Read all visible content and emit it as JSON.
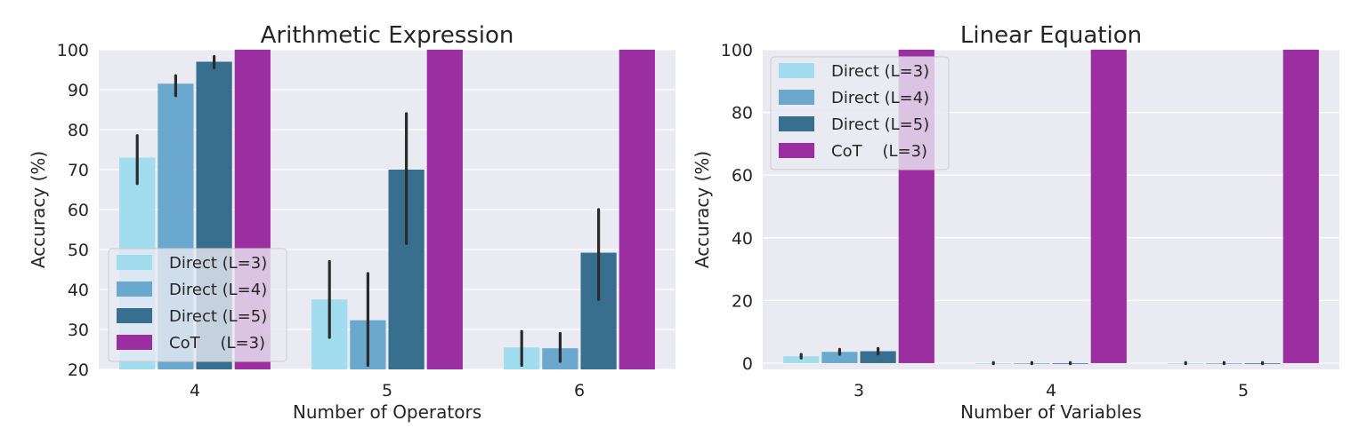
{
  "colors": {
    "background": "#eaeaf2",
    "grid": "#ffffff",
    "errorbar": "#2b2b2b",
    "series": [
      "#a1dcef",
      "#6aa8cd",
      "#386f8e",
      "#9b2ea0"
    ]
  },
  "legend_labels": [
    "Direct (L=3)",
    "Direct (L=4)",
    "Direct (L=5)",
    "CoT    (L=3)"
  ],
  "chart_data": [
    {
      "type": "bar",
      "title": "Arithmetic Expression",
      "xlabel": "Number of Operators",
      "ylabel": "Accuracy (%)",
      "categories": [
        "4",
        "5",
        "6"
      ],
      "ylim": [
        20,
        100
      ],
      "yticks": [
        "20",
        "30",
        "40",
        "50",
        "60",
        "70",
        "80",
        "90",
        "100"
      ],
      "grid": true,
      "legend_position": "lower-left",
      "series": [
        {
          "name": "Direct (L=3)",
          "values": [
            73,
            37.5,
            25.5
          ],
          "err_low": [
            66.5,
            28,
            21
          ],
          "err_high": [
            78.5,
            47,
            29.5
          ]
        },
        {
          "name": "Direct (L=4)",
          "values": [
            91.5,
            32.3,
            25.3
          ],
          "err_low": [
            88.5,
            21,
            22
          ],
          "err_high": [
            93.5,
            44,
            29
          ]
        },
        {
          "name": "Direct (L=5)",
          "values": [
            97,
            70,
            49.2
          ],
          "err_low": [
            95.5,
            51.5,
            37.5
          ],
          "err_high": [
            98.3,
            84,
            60
          ]
        },
        {
          "name": "CoT    (L=3)",
          "values": [
            100,
            100,
            100
          ],
          "err_low": [
            100,
            100,
            100
          ],
          "err_high": [
            100,
            100,
            100
          ]
        }
      ]
    },
    {
      "type": "bar",
      "title": "Linear Equation",
      "xlabel": "Number of Variables",
      "ylabel": "Accuracy (%)",
      "categories": [
        "3",
        "4",
        "5"
      ],
      "ylim": [
        -2,
        100
      ],
      "yticks": [
        "0",
        "20",
        "40",
        "60",
        "80",
        "100"
      ],
      "grid": true,
      "legend_position": "upper-left",
      "series": [
        {
          "name": "Direct (L=3)",
          "values": [
            2.2,
            0,
            0
          ],
          "err_low": [
            1.6,
            -0.2,
            -0.2
          ],
          "err_high": [
            2.8,
            0.2,
            0.2
          ]
        },
        {
          "name": "Direct (L=4)",
          "values": [
            3.6,
            0,
            0
          ],
          "err_low": [
            2.8,
            -0.2,
            -0.2
          ],
          "err_high": [
            4.4,
            0.2,
            0.2
          ]
        },
        {
          "name": "Direct (L=5)",
          "values": [
            3.8,
            0,
            0
          ],
          "err_low": [
            2.9,
            -0.2,
            -0.2
          ],
          "err_high": [
            4.7,
            0.2,
            0.2
          ]
        },
        {
          "name": "CoT    (L=3)",
          "values": [
            100,
            100,
            100
          ],
          "err_low": [
            100,
            100,
            100
          ],
          "err_high": [
            100,
            100,
            100
          ]
        }
      ]
    }
  ]
}
